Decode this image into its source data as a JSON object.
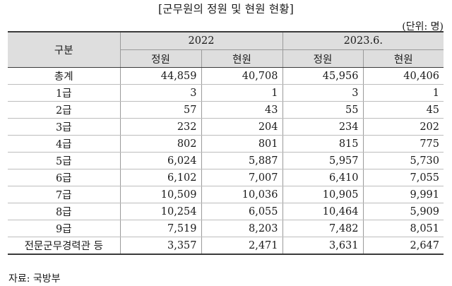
{
  "title": "[군무원의 정원 및 현원 현황]",
  "unit": "(단위: 명)",
  "table": {
    "corner_label": "구분",
    "groups": [
      "2022",
      "2023.6."
    ],
    "subheaders": [
      "정원",
      "현원",
      "정원",
      "현원"
    ],
    "rows": [
      {
        "category": "총계",
        "values": [
          "44,859",
          "40,708",
          "45,956",
          "40,406"
        ]
      },
      {
        "category": "1급",
        "values": [
          "3",
          "1",
          "3",
          "1"
        ]
      },
      {
        "category": "2급",
        "values": [
          "57",
          "43",
          "55",
          "45"
        ]
      },
      {
        "category": "3급",
        "values": [
          "232",
          "204",
          "234",
          "202"
        ]
      },
      {
        "category": "4급",
        "values": [
          "802",
          "801",
          "815",
          "775"
        ]
      },
      {
        "category": "5급",
        "values": [
          "6,024",
          "5,887",
          "5,957",
          "5,730"
        ]
      },
      {
        "category": "6급",
        "values": [
          "6,102",
          "7,007",
          "6,410",
          "7,055"
        ]
      },
      {
        "category": "7급",
        "values": [
          "10,509",
          "10,036",
          "10,905",
          "9,991"
        ]
      },
      {
        "category": "8급",
        "values": [
          "10,254",
          "6,055",
          "10,464",
          "5,909"
        ]
      },
      {
        "category": "9급",
        "values": [
          "7,519",
          "8,203",
          "7,482",
          "8,051"
        ]
      },
      {
        "category": "전문군무경력관 등",
        "values": [
          "3,357",
          "2,471",
          "3,631",
          "2,647"
        ]
      }
    ]
  },
  "source": "자료: 국방부"
}
